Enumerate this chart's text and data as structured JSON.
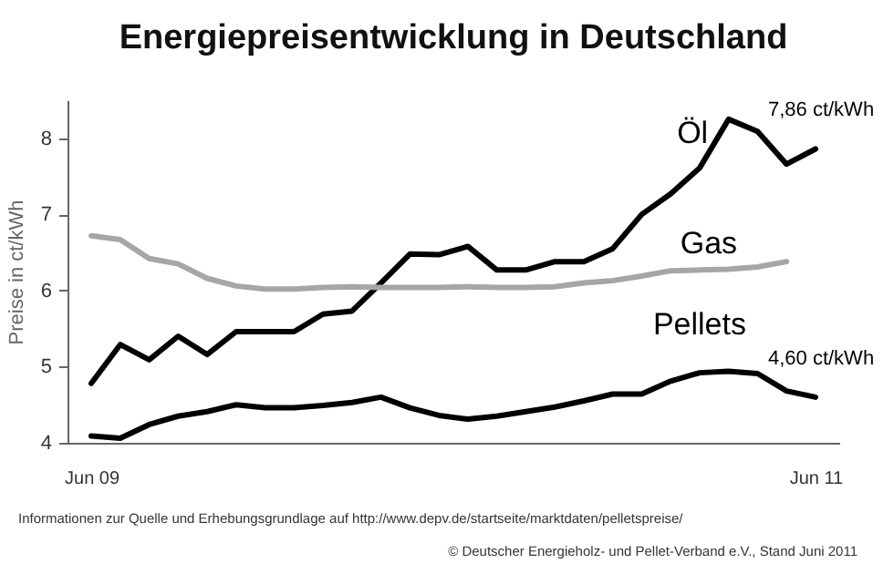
{
  "chart_data": {
    "type": "line",
    "title": "Energiepreisentwicklung in Deutschland",
    "ylabel": "Preise in ct/kWh",
    "categories": [
      "Jun 09",
      null,
      null,
      null,
      null,
      null,
      null,
      null,
      null,
      null,
      null,
      null,
      null,
      null,
      null,
      null,
      null,
      null,
      null,
      null,
      null,
      null,
      null,
      null,
      null,
      "Jun 11"
    ],
    "ylim": [
      4,
      8.5
    ],
    "yticks": [
      4,
      5,
      6,
      7,
      8
    ],
    "series": [
      {
        "name": "Öl",
        "color": "#000000",
        "values": [
          4.78,
          5.29,
          5.09,
          5.4,
          5.16,
          5.46,
          5.46,
          5.46,
          5.69,
          5.73,
          6.1,
          6.48,
          6.47,
          6.58,
          6.27,
          6.27,
          6.38,
          6.38,
          6.55,
          7.0,
          7.27,
          7.61,
          8.25,
          8.09,
          7.66,
          7.86
        ]
      },
      {
        "name": "Gas",
        "color": "#a6a6a6",
        "values": [
          6.72,
          6.67,
          6.42,
          6.35,
          6.16,
          6.06,
          6.02,
          6.02,
          6.04,
          6.05,
          6.04,
          6.04,
          6.04,
          6.05,
          6.04,
          6.04,
          6.05,
          6.1,
          6.13,
          6.19,
          6.26,
          6.27,
          6.28,
          6.31,
          6.38,
          null
        ]
      },
      {
        "name": "Pellets",
        "color": "#000000",
        "values": [
          4.09,
          4.06,
          4.24,
          4.35,
          4.41,
          4.5,
          4.46,
          4.46,
          4.49,
          4.53,
          4.6,
          4.46,
          4.36,
          4.31,
          4.35,
          4.41,
          4.47,
          4.55,
          4.64,
          4.64,
          4.81,
          4.92,
          4.94,
          4.91,
          4.68,
          4.6
        ]
      }
    ],
    "annotations": [
      {
        "text": "7,86 ct/kWh",
        "x": "Jun 11",
        "y": 7.86
      },
      {
        "text": "4,60 ct/kWh",
        "x": "Jun 11",
        "y": 4.6
      },
      "Informationen zur Quelle und Erhebungsgrundlage auf http://www.depv.de/startseite/marktdaten/pelletspreise/",
      "© Deutscher Energieholz- und Pellet-Verband e.V., Stand Juni 2011"
    ]
  }
}
